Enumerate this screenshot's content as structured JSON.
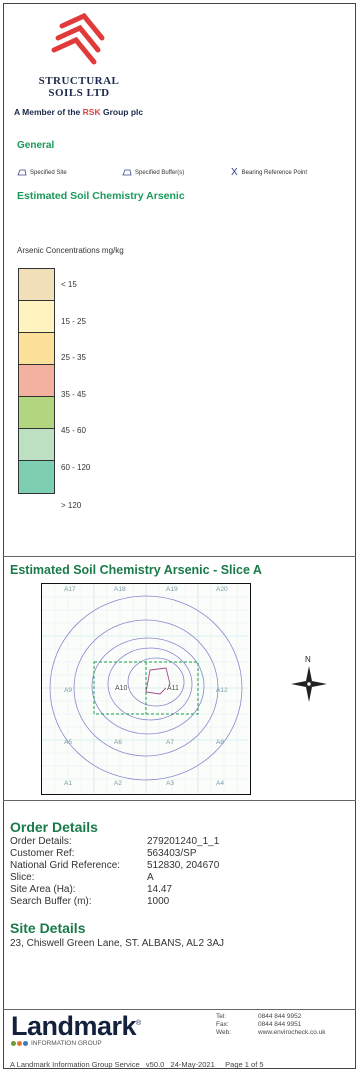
{
  "logo": {
    "line1": "STRUCTURAL",
    "line2": "SOILS LTD",
    "member_prefix": "A Member of the ",
    "member_brand": "RSK",
    "member_suffix": " Group plc"
  },
  "general": {
    "title": "General"
  },
  "legend": {
    "specified_site": "Specified Site",
    "specified_buffer": "Specified Buffer(s)",
    "bearing_mark": "X",
    "bearing_label": "Bearing Reference Point"
  },
  "estimate_title": "Estimated Soil Chemistry Arsenic",
  "scale": {
    "title": "Arsenic Concentrations mg/kg",
    "bands": [
      {
        "label": "< 15",
        "color": "#f1dfb9"
      },
      {
        "label": "15 - 25",
        "color": "#fff4c0"
      },
      {
        "label": "25 - 35",
        "color": "#fde19a"
      },
      {
        "label": "35 - 45",
        "color": "#f2b29f"
      },
      {
        "label": "45 - 60",
        "color": "#b2d67f"
      },
      {
        "label": "60 - 120",
        "color": "#bde0c3"
      },
      {
        "label": "> 120",
        "color": "#7ecfb2"
      }
    ]
  },
  "slice": {
    "title": "Estimated Soil Chemistry Arsenic - Slice A",
    "north": "N",
    "grid_labels": [
      "A17",
      "A18",
      "A19",
      "A20",
      "A9",
      "A10",
      "A11",
      "A12",
      "A5",
      "A6",
      "A7",
      "A8",
      "A1",
      "A2",
      "A3",
      "A4"
    ]
  },
  "order": {
    "title": "Order Details",
    "rows": [
      {
        "label": "Order Details:",
        "value": "279201240_1_1"
      },
      {
        "label": "Customer Ref:",
        "value": "563403/SP"
      },
      {
        "label": "National Grid Reference:",
        "value": "512830, 204670"
      },
      {
        "label": "Slice:",
        "value": "A"
      },
      {
        "label": "Site Area (Ha):",
        "value": "14.47"
      },
      {
        "label": "Search Buffer (m):",
        "value": "1000"
      }
    ]
  },
  "site": {
    "title": "Site Details",
    "address": "23, Chiswell Green Lane, ST. ALBANS, AL2 3AJ"
  },
  "brand": {
    "name": "Landmark",
    "tm": "®",
    "sub": "INFORMATION GROUP"
  },
  "contact": {
    "tel_label": "Tel:",
    "tel": "0844 844 9952",
    "fax_label": "Fax:",
    "fax": "0844 844 9951",
    "web_label": "Web:",
    "web": "www.envirocheck.co.uk"
  },
  "footer": {
    "service": "A Landmark Information Group Service",
    "version": "v50.0",
    "date": "24-May-2021",
    "page": "Page 1 of 5"
  }
}
